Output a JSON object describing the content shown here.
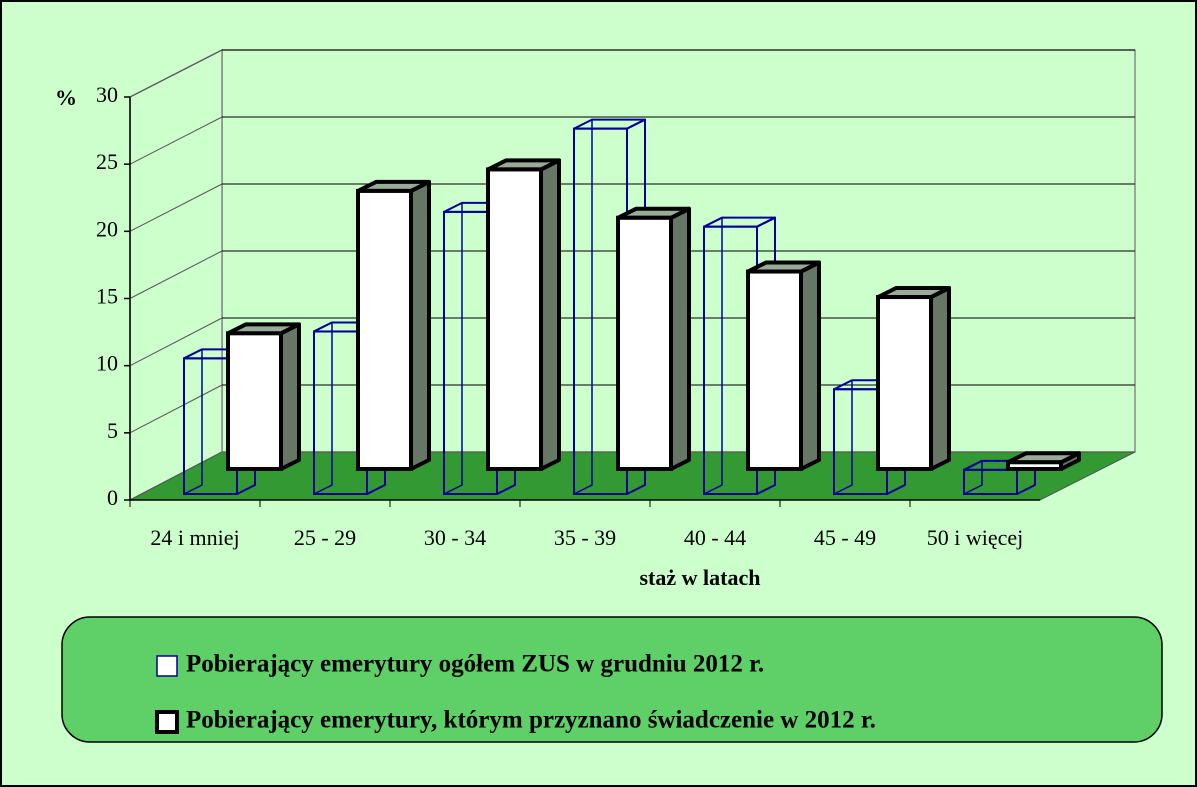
{
  "chart_data": {
    "type": "bar3d",
    "y_label": "%",
    "x_label": "staż w latach",
    "categories": [
      "24 i mniej",
      "25 - 29",
      "30 - 34",
      "35 - 39",
      "40 - 44",
      "45 - 49",
      "50 i więcej"
    ],
    "series": [
      {
        "name": "Pobierający emerytury ogółem ZUS w grudniu 2012 r.",
        "color": "#000099",
        "values": [
          10.1,
          12.1,
          21.0,
          27.2,
          19.9,
          7.8,
          1.8
        ]
      },
      {
        "name": "Pobierający emerytury, którym przyznano świadczenie w 2012 r.",
        "color": "#000000",
        "values": [
          10.1,
          20.7,
          22.3,
          18.7,
          14.7,
          12.8,
          0.5
        ]
      }
    ],
    "ylim": [
      0,
      30
    ],
    "yticks": [
      0,
      5,
      10,
      15,
      20,
      25,
      30
    ],
    "grid": true
  }
}
